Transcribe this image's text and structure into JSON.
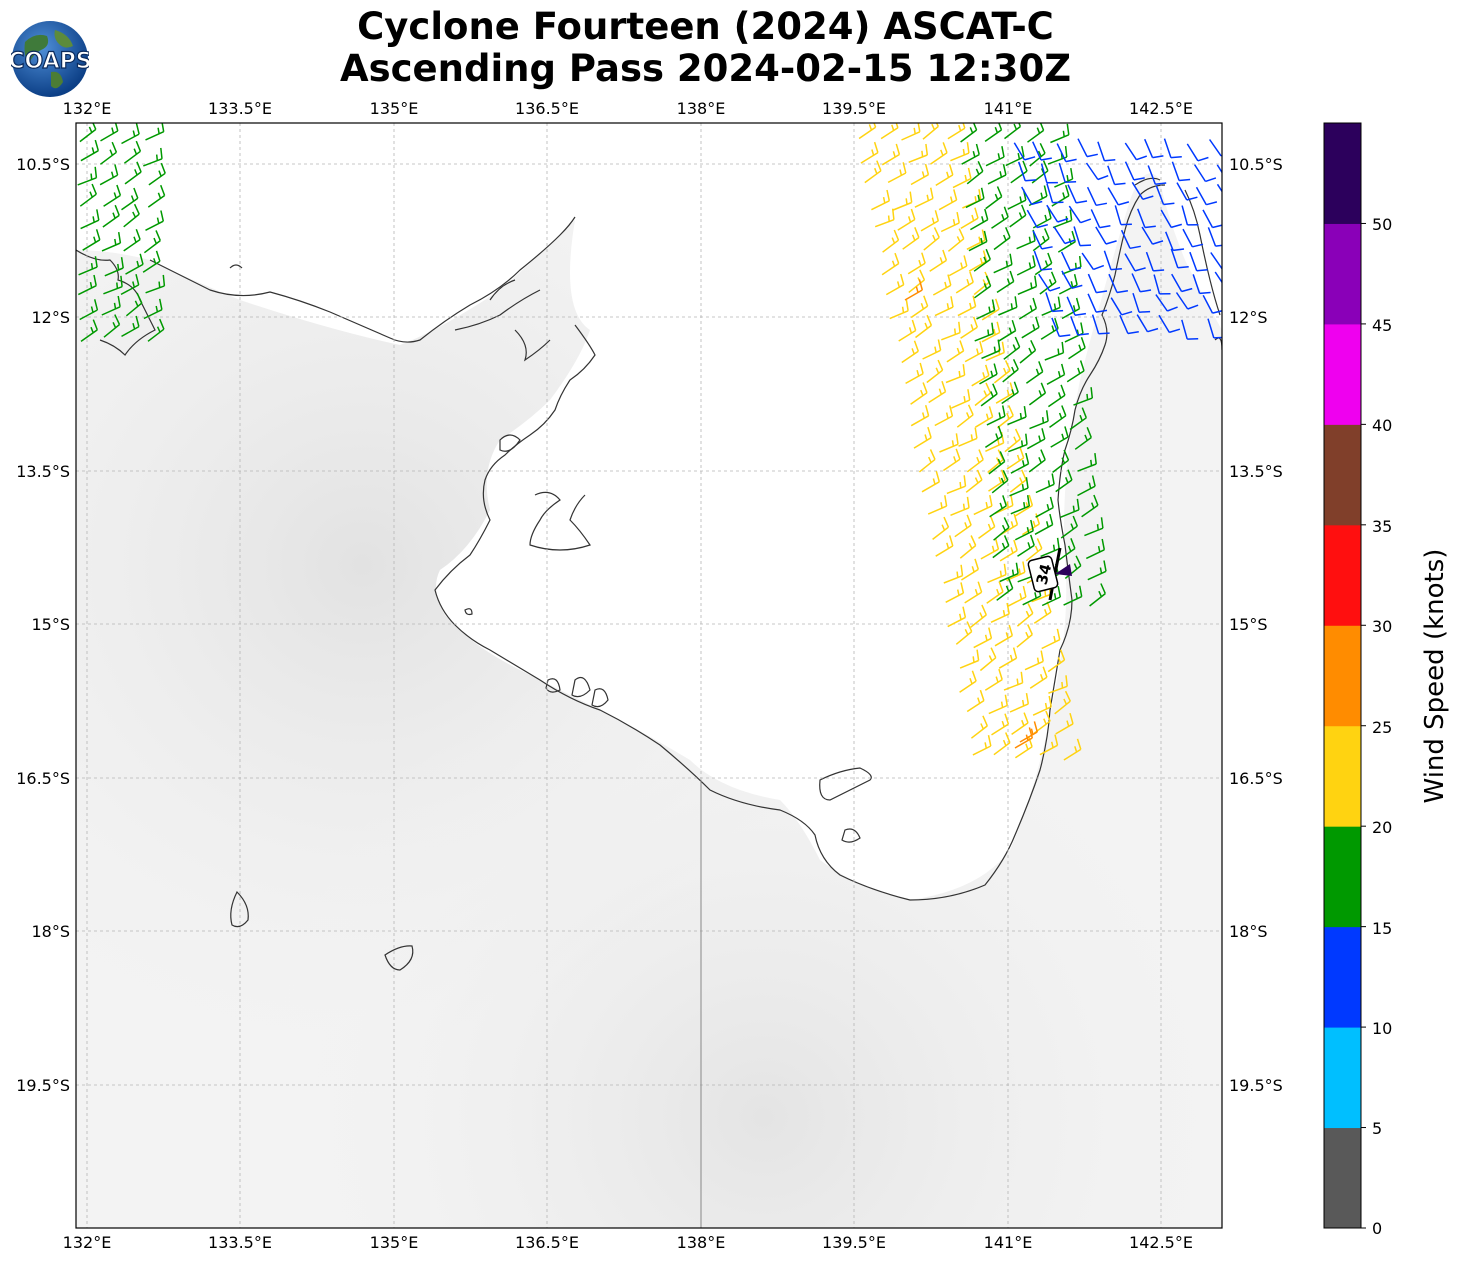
{
  "header": {
    "title_line1": "Cyclone Fourteen (2024) ASCAT-C",
    "title_line2": "Ascending Pass 2024-02-15 12:30Z",
    "logo_text": "COAPS"
  },
  "map": {
    "lon_ticks": [
      "132°E",
      "133.5°E",
      "135°E",
      "136.5°E",
      "138°E",
      "139.5°E",
      "141°E",
      "142.5°E"
    ],
    "lat_ticks": [
      "10.5°S",
      "12°S",
      "13.5°S",
      "15°S",
      "16.5°S",
      "18°S",
      "19.5°S"
    ],
    "lon_range": [
      131.9,
      143.1
    ],
    "lat_range": [
      -10.1,
      -20.9
    ],
    "storm_marker": {
      "label": "34",
      "lon": 141.35,
      "lat": -14.5
    },
    "gridlines": true
  },
  "colorbar": {
    "title": "Wind Speed (knots)",
    "ticks": [
      "0",
      "5",
      "10",
      "15",
      "20",
      "25",
      "30",
      "35",
      "40",
      "45",
      "50"
    ],
    "colors": [
      "#595959",
      "#00bfff",
      "#0039ff",
      "#009900",
      "#ffd311",
      "#ff8c00",
      "#ff0f0f",
      "#803f2a",
      "#ef00ef",
      "#8a00b8",
      "#2c005c"
    ]
  },
  "chart_data": {
    "type": "scatter",
    "title": "Cyclone Fourteen (2024) ASCAT-C Ascending Pass 2024-02-15 12:30Z",
    "xlabel": "",
    "ylabel": "",
    "xlim": [
      131.9,
      143.1
    ],
    "ylim": [
      -20.9,
      -10.1
    ],
    "colorbar_label": "Wind Speed (knots)",
    "wind_swaths": [
      {
        "name": "",
        "lon_range": [
          131.9,
          132.7
        ],
        "lat_range": [
          -10.2,
          -12.3
        ],
        "speed_class_knots": "15-20",
        "color": "#009900"
      },
      {
        "name": "",
        "lon_range": [
          139.5,
          140.6
        ],
        "lat_range": [
          -10.2,
          -16.5
        ],
        "speed_class_knots": "20-25",
        "color": "#ffd311"
      },
      {
        "name": "",
        "lon_range": [
          140.5,
          141.5
        ],
        "lat_range": [
          -10.2,
          -14.9
        ],
        "speed_class_knots": "15-20",
        "color": "#009900"
      },
      {
        "name": "",
        "lon_range": [
          141.0,
          143.1
        ],
        "lat_range": [
          -10.2,
          -12.0
        ],
        "speed_class_knots": "10-15",
        "color": "#0039ff"
      }
    ]
  }
}
